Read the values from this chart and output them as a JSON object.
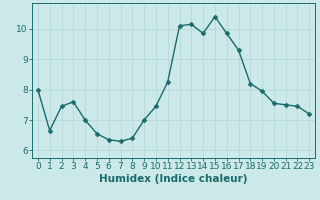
{
  "x": [
    0,
    1,
    2,
    3,
    4,
    5,
    6,
    7,
    8,
    9,
    10,
    11,
    12,
    13,
    14,
    15,
    16,
    17,
    18,
    19,
    20,
    21,
    22,
    23
  ],
  "y": [
    8.0,
    6.65,
    7.45,
    7.6,
    7.0,
    6.55,
    6.35,
    6.3,
    6.4,
    7.0,
    7.45,
    8.25,
    10.1,
    10.15,
    9.85,
    10.4,
    9.85,
    9.3,
    8.2,
    7.95,
    7.55,
    7.5,
    7.45,
    7.2
  ],
  "bg_color": "#cce9e9",
  "line_color": "#1a6b6b",
  "marker_color": "#1a6b6b",
  "xlabel": "Humidex (Indice chaleur)",
  "xlim": [
    -0.5,
    23.5
  ],
  "ylim": [
    5.75,
    10.85
  ],
  "yticks": [
    6,
    7,
    8,
    9,
    10
  ],
  "xticks": [
    0,
    1,
    2,
    3,
    4,
    5,
    6,
    7,
    8,
    9,
    10,
    11,
    12,
    13,
    14,
    15,
    16,
    17,
    18,
    19,
    20,
    21,
    22,
    23
  ],
  "grid_color": "#b8d8d8",
  "tick_color": "#1a6b6b",
  "label_color": "#1a6b6b",
  "xlabel_fontsize": 7.5,
  "tick_fontsize": 6.5,
  "line_width": 1.0,
  "marker_size": 2.5
}
